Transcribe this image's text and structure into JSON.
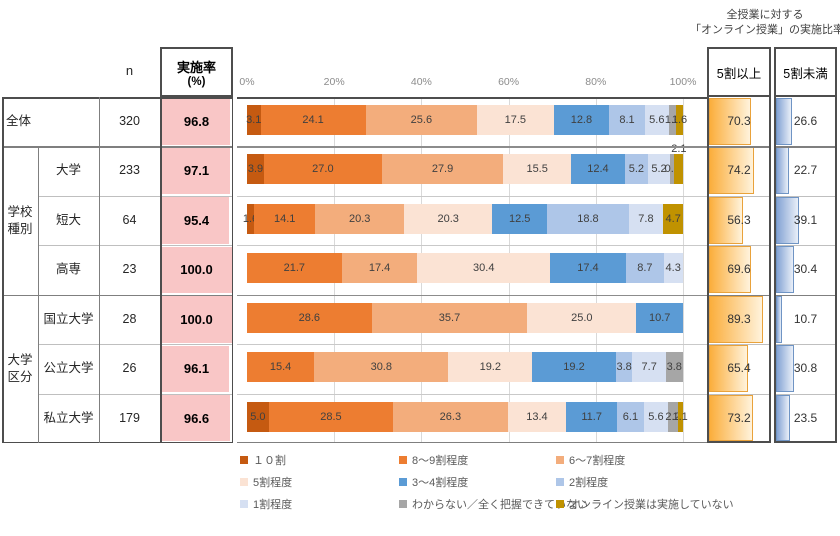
{
  "right_table_title": {
    "line1": "全授業に対する",
    "line2": "「オンライン授業」の実施比率"
  },
  "headers": {
    "n": "n",
    "rate_line1": "実施率",
    "rate_line2": "(%)",
    "ge50": "5割以上",
    "lt50": "5割未満"
  },
  "groups": [
    {
      "label_lines": [
        "学校",
        "種別"
      ],
      "start_row": 1,
      "row_span": 3
    },
    {
      "label_lines": [
        "大学",
        "区分"
      ],
      "start_row": 4,
      "row_span": 3
    }
  ],
  "rows": [
    {
      "name": "全体",
      "n": "320",
      "rate": "96.8",
      "ge50": "70.3",
      "lt50": "26.6"
    },
    {
      "name": "大学",
      "n": "233",
      "rate": "97.1",
      "ge50": "74.2",
      "lt50": "22.7"
    },
    {
      "name": "短大",
      "n": "64",
      "rate": "95.4",
      "ge50": "56.3",
      "lt50": "39.1"
    },
    {
      "name": "高専",
      "n": "23",
      "rate": "100.0",
      "ge50": "69.6",
      "lt50": "30.4"
    },
    {
      "name": "国立大学",
      "n": "28",
      "rate": "100.0",
      "ge50": "89.3",
      "lt50": "10.7"
    },
    {
      "name": "公立大学",
      "n": "26",
      "rate": "96.1",
      "ge50": "65.4",
      "lt50": "30.8"
    },
    {
      "name": "私立大学",
      "n": "179",
      "rate": "96.6",
      "ge50": "73.2",
      "lt50": "23.5"
    }
  ],
  "axis": {
    "ticks": [
      "0%",
      "20%",
      "40%",
      "60%",
      "80%",
      "100%"
    ],
    "range": [
      0,
      100
    ]
  },
  "chart_data": {
    "type": "bar",
    "stacked": true,
    "orientation": "horizontal",
    "xlim": [
      0,
      100
    ],
    "grid": true,
    "legend_position": "bottom",
    "categories": [
      "全体",
      "大学",
      "短大",
      "高専",
      "国立大学",
      "公立大学",
      "私立大学"
    ],
    "series": [
      {
        "name": "１０割",
        "color": "#C55A11",
        "values": [
          3.1,
          3.9,
          1.6,
          0,
          0,
          0,
          5.0
        ]
      },
      {
        "name": "8～9割程度",
        "color": "#ED7D31",
        "values": [
          24.1,
          27.0,
          14.1,
          21.7,
          28.6,
          15.4,
          28.5
        ]
      },
      {
        "name": "6～7割程度",
        "color": "#F3AD7C",
        "values": [
          25.6,
          27.9,
          20.3,
          17.4,
          35.7,
          30.8,
          26.3
        ]
      },
      {
        "name": "5割程度",
        "color": "#FBE3D4",
        "values": [
          17.5,
          15.5,
          20.3,
          30.4,
          25.0,
          19.2,
          13.4
        ]
      },
      {
        "name": "3～4割程度",
        "color": "#5B9BD5",
        "values": [
          12.8,
          12.4,
          12.5,
          17.4,
          10.7,
          19.2,
          11.7
        ]
      },
      {
        "name": "2割程度",
        "color": "#AEC6E8",
        "values": [
          8.1,
          5.2,
          18.8,
          8.7,
          0,
          3.8,
          6.1
        ]
      },
      {
        "name": "1割程度",
        "color": "#D6E0F2",
        "values": [
          5.6,
          5.2,
          7.8,
          4.3,
          0,
          7.7,
          5.6
        ]
      },
      {
        "name": "わからない／全く把握できていない",
        "color": "#A6A6A6",
        "values": [
          1.6,
          0.9,
          0,
          0,
          0,
          3.8,
          2.2
        ]
      },
      {
        "name": "オンライン授業は実施していない",
        "color": "#C09200",
        "values": [
          1.6,
          2.1,
          4.7,
          0,
          0,
          0,
          1.1
        ]
      }
    ],
    "label_above": [
      {
        "row": 1,
        "series": 8
      }
    ]
  },
  "colors": {
    "rate_databar": "#F9C6C6",
    "ge50_bar_start": "#FBAE3C",
    "ge50_bar_end": "#FFF3DC",
    "ge50_bar_border": "#E9A23B",
    "lt50_bar_start": "#84A3D4",
    "lt50_bar_end": "#E9EFF8",
    "lt50_bar_border": "#6F94C4",
    "bar_label": "#404040",
    "axis_label": "#8C8C8C",
    "legend_text": "#595959",
    "grid_line": "#D9D9D9",
    "dark_line": "#4D4D4D",
    "mid_line": "#7F7F7F",
    "light_line": "#BFBFBF"
  }
}
